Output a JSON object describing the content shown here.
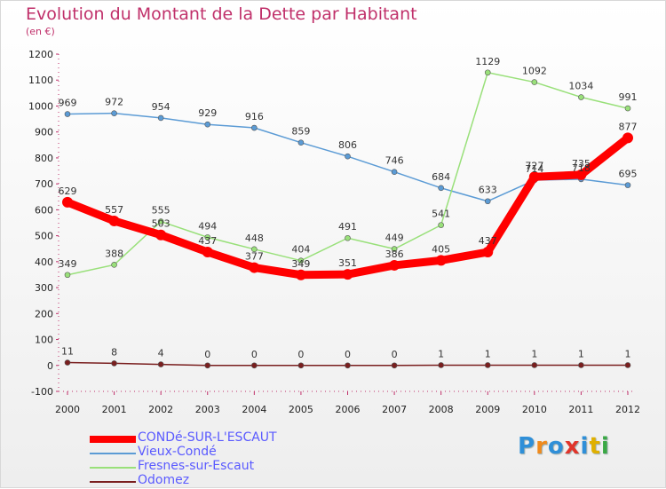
{
  "header": {
    "title": "Evolution du Montant de la Dette par Habitant",
    "unit": "(en €)"
  },
  "logo": {
    "text": "Proxiti",
    "colors": [
      "#2f8fd8",
      "#f08a1c",
      "#2f8fd8",
      "#e0352b",
      "#2f8fd8",
      "#e0b000",
      "#3aa845"
    ]
  },
  "chart_data": {
    "type": "line",
    "title": "Evolution du Montant de la Dette par Habitant",
    "ylabel": "(en €)",
    "xlabel": "",
    "x": [
      "2000",
      "2001",
      "2002",
      "2003",
      "2004",
      "2005",
      "2006",
      "2007",
      "2008",
      "2009",
      "2010",
      "2011",
      "2012"
    ],
    "ylim": [
      -100,
      1200
    ],
    "yticks": [
      "-100",
      "0",
      "100",
      "200",
      "300",
      "400",
      "500",
      "600",
      "700",
      "800",
      "900",
      "1000",
      "1100",
      "1200"
    ],
    "grid": "none",
    "legend_position": "bottom-left",
    "series": [
      {
        "name": "CONDé-SUR-L'ESCAUT",
        "color": "#ff0000",
        "emphasis": true,
        "values": [
          629,
          557,
          503,
          437,
          377,
          349,
          351,
          386,
          405,
          437,
          727,
          735,
          877
        ],
        "labels": [
          "629",
          "557",
          "503",
          "437",
          "377",
          "349",
          "351",
          "386",
          "405",
          "437",
          "727",
          "735",
          "877"
        ]
      },
      {
        "name": "Vieux-Condé",
        "color": "#5b9bd5",
        "emphasis": false,
        "values": [
          969,
          972,
          954,
          929,
          916,
          859,
          806,
          746,
          684,
          633,
          714,
          718,
          695
        ],
        "labels": [
          "969",
          "972",
          "954",
          "929",
          "916",
          "859",
          "806",
          "746",
          "684",
          "633",
          "714",
          "718",
          "695"
        ]
      },
      {
        "name": "Fresnes-sur-Escaut",
        "color": "#99e07a",
        "emphasis": false,
        "values": [
          349,
          388,
          555,
          494,
          448,
          404,
          491,
          449,
          541,
          1129,
          1092,
          1034,
          991
        ],
        "labels": [
          "349",
          "388",
          "555",
          "494",
          "448",
          "404",
          "491",
          "449",
          "541",
          "1129",
          "1092",
          "1034",
          "991"
        ]
      },
      {
        "name": "Odomez",
        "color": "#7a1f1f",
        "emphasis": false,
        "values": [
          11,
          8,
          4,
          0,
          0,
          0,
          0,
          0,
          1,
          1,
          1,
          1,
          1
        ],
        "labels": [
          "11",
          "8",
          "4",
          "0",
          "0",
          "0",
          "0",
          "0",
          "1",
          "1",
          "1",
          "1",
          "1"
        ]
      }
    ]
  }
}
